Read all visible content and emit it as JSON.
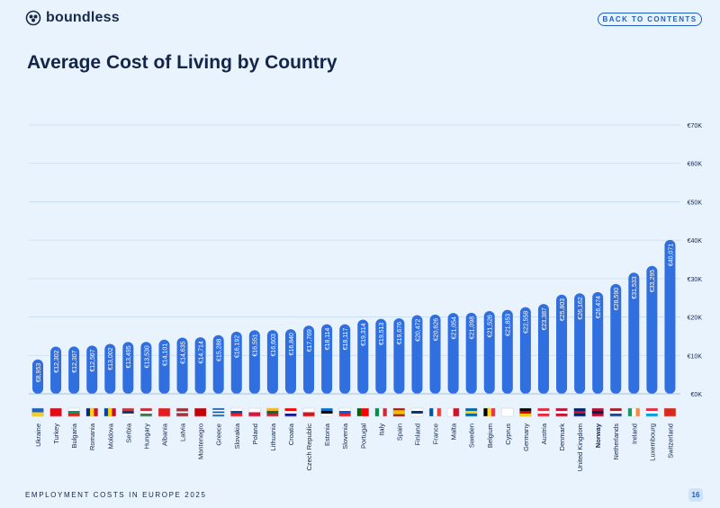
{
  "brand": {
    "name": "boundless",
    "logo_icon": "boundless-logo-icon"
  },
  "nav": {
    "back_label": "BACK TO CONTENTS"
  },
  "page": {
    "title": "Average Cost of Living by Country",
    "footer": "EMPLOYMENT COSTS IN EUROPE 2025",
    "page_number": "16"
  },
  "colors": {
    "bar": "#2f6fe0",
    "text": "#13254a",
    "accent": "#1f5fbf",
    "background": "#e8f3fd"
  },
  "chart_data": {
    "type": "bar",
    "title": "Average Cost of Living by Country",
    "xlabel": "",
    "ylabel": "",
    "ylim": [
      0,
      70000
    ],
    "y_ticks": [
      0,
      10000,
      20000,
      30000,
      40000,
      50000,
      60000,
      70000
    ],
    "y_tick_labels": [
      "€0K",
      "€10K",
      "€20K",
      "€30K",
      "€40K",
      "€50K",
      "€60K",
      "€70K"
    ],
    "grid": true,
    "y_axis_side": "right",
    "categories": [
      "Ukraine",
      "Turkey",
      "Bulgaria",
      "Romania",
      "Moldova",
      "Serbia",
      "Hungary",
      "Albania",
      "Latvia",
      "Montenegro",
      "Greece",
      "Slovakia",
      "Poland",
      "Lithuania",
      "Croatia",
      "Czech Republic",
      "Estonia",
      "Slovenia",
      "Portugal",
      "Italy",
      "Spain",
      "Finland",
      "France",
      "Malta",
      "Sweden",
      "Belgium",
      "Cyprus",
      "Germany",
      "Austria",
      "Denmark",
      "United Kingdom",
      "Norway",
      "Netherlands",
      "Ireland",
      "Luxembourg",
      "Switzerland"
    ],
    "values": [
      8953,
      12302,
      12307,
      12567,
      13002,
      13495,
      13530,
      14101,
      14635,
      14714,
      15288,
      16192,
      16551,
      16603,
      16840,
      17769,
      18114,
      18117,
      19314,
      19513,
      19676,
      20472,
      20626,
      21054,
      21098,
      21526,
      21853,
      22558,
      23387,
      25803,
      26162,
      26474,
      28590,
      31533,
      33295,
      40071
    ],
    "data_labels": [
      "€8,953",
      "€12,302",
      "€12,307",
      "€12,567",
      "€13,002",
      "€13,495",
      "€13,530",
      "€14,101",
      "€14,635",
      "€14,714",
      "€15,288",
      "€16,192",
      "€16,551",
      "€16,603",
      "€16,840",
      "€17,769",
      "€18,114",
      "€18,117",
      "€19,314",
      "€19,513",
      "€19,676",
      "€20,472",
      "€20,626",
      "€21,054",
      "€21,098",
      "€21,526",
      "€21,853",
      "€22,558",
      "€23,387",
      "€25,803",
      "€26,162",
      "€26,474",
      "€28,590",
      "€31,533",
      "€33,295",
      "€40,071"
    ],
    "highlighted_category": "Norway",
    "flags": [
      {
        "name": "ukraine-flag-icon",
        "stripes": "h",
        "colors": [
          "#1f5fc8",
          "#f3cf1f"
        ]
      },
      {
        "name": "turkey-flag-icon",
        "stripes": "h",
        "colors": [
          "#e30a17"
        ]
      },
      {
        "name": "bulgaria-flag-icon",
        "stripes": "h",
        "colors": [
          "#ffffff",
          "#00966e",
          "#d62612"
        ]
      },
      {
        "name": "romania-flag-icon",
        "stripes": "v",
        "colors": [
          "#002b7f",
          "#fcd116",
          "#ce1126"
        ]
      },
      {
        "name": "moldova-flag-icon",
        "stripes": "v",
        "colors": [
          "#0046ae",
          "#ffd200",
          "#cc092f"
        ]
      },
      {
        "name": "serbia-flag-icon",
        "stripes": "h",
        "colors": [
          "#c6363c",
          "#0c4076",
          "#ffffff"
        ]
      },
      {
        "name": "hungary-flag-icon",
        "stripes": "h",
        "colors": [
          "#ce2939",
          "#ffffff",
          "#477050"
        ]
      },
      {
        "name": "albania-flag-icon",
        "stripes": "h",
        "colors": [
          "#e41e20"
        ]
      },
      {
        "name": "latvia-flag-icon",
        "stripes": "h",
        "colors": [
          "#9e3039",
          "#9e3039",
          "#ffffff",
          "#9e3039",
          "#9e3039"
        ]
      },
      {
        "name": "montenegro-flag-icon",
        "stripes": "h",
        "colors": [
          "#c40308"
        ]
      },
      {
        "name": "greece-flag-icon",
        "stripes": "h",
        "colors": [
          "#0d5eaf",
          "#ffffff",
          "#0d5eaf",
          "#ffffff",
          "#0d5eaf"
        ]
      },
      {
        "name": "slovakia-flag-icon",
        "stripes": "h",
        "colors": [
          "#ffffff",
          "#0b4ea2",
          "#ee1c25"
        ]
      },
      {
        "name": "poland-flag-icon",
        "stripes": "h",
        "colors": [
          "#ffffff",
          "#dc143c"
        ]
      },
      {
        "name": "lithuania-flag-icon",
        "stripes": "h",
        "colors": [
          "#fdb913",
          "#006a44",
          "#c1272d"
        ]
      },
      {
        "name": "croatia-flag-icon",
        "stripes": "h",
        "colors": [
          "#ff0000",
          "#ffffff",
          "#171796"
        ]
      },
      {
        "name": "czech-republic-flag-icon",
        "stripes": "h",
        "colors": [
          "#ffffff",
          "#d7141a"
        ]
      },
      {
        "name": "estonia-flag-icon",
        "stripes": "h",
        "colors": [
          "#0072ce",
          "#000000",
          "#ffffff"
        ]
      },
      {
        "name": "slovenia-flag-icon",
        "stripes": "h",
        "colors": [
          "#ffffff",
          "#005ce5",
          "#ed1c24"
        ]
      },
      {
        "name": "portugal-flag-icon",
        "stripes": "v",
        "colors": [
          "#006600",
          "#ff0000",
          "#ff0000"
        ]
      },
      {
        "name": "italy-flag-icon",
        "stripes": "v",
        "colors": [
          "#009246",
          "#ffffff",
          "#ce2b37"
        ]
      },
      {
        "name": "spain-flag-icon",
        "stripes": "h",
        "colors": [
          "#aa151b",
          "#f1bf00",
          "#f1bf00",
          "#aa151b"
        ]
      },
      {
        "name": "finland-flag-icon",
        "stripes": "h",
        "colors": [
          "#ffffff",
          "#003580",
          "#ffffff"
        ]
      },
      {
        "name": "france-flag-icon",
        "stripes": "v",
        "colors": [
          "#0055a4",
          "#ffffff",
          "#ef4135"
        ]
      },
      {
        "name": "malta-flag-icon",
        "stripes": "v",
        "colors": [
          "#ffffff",
          "#cf142b"
        ]
      },
      {
        "name": "sweden-flag-icon",
        "stripes": "h",
        "colors": [
          "#006aa7",
          "#fecc00",
          "#006aa7"
        ]
      },
      {
        "name": "belgium-flag-icon",
        "stripes": "v",
        "colors": [
          "#000000",
          "#fdda24",
          "#ef3340"
        ]
      },
      {
        "name": "cyprus-flag-icon",
        "stripes": "h",
        "colors": [
          "#ffffff"
        ]
      },
      {
        "name": "germany-flag-icon",
        "stripes": "h",
        "colors": [
          "#000000",
          "#dd0000",
          "#ffce00"
        ]
      },
      {
        "name": "austria-flag-icon",
        "stripes": "h",
        "colors": [
          "#ed2939",
          "#ffffff",
          "#ed2939"
        ]
      },
      {
        "name": "denmark-flag-icon",
        "stripes": "h",
        "colors": [
          "#c8102e",
          "#ffffff",
          "#c8102e"
        ]
      },
      {
        "name": "united-kingdom-flag-icon",
        "stripes": "h",
        "colors": [
          "#012169",
          "#c8102e",
          "#012169"
        ]
      },
      {
        "name": "norway-flag-icon",
        "stripes": "h",
        "colors": [
          "#ba0c2f",
          "#00205b",
          "#ba0c2f"
        ]
      },
      {
        "name": "netherlands-flag-icon",
        "stripes": "h",
        "colors": [
          "#ae1c28",
          "#ffffff",
          "#21468b"
        ]
      },
      {
        "name": "ireland-flag-icon",
        "stripes": "v",
        "colors": [
          "#169b62",
          "#ffffff",
          "#ff883e"
        ]
      },
      {
        "name": "luxembourg-flag-icon",
        "stripes": "h",
        "colors": [
          "#ed2939",
          "#ffffff",
          "#00a1de"
        ]
      },
      {
        "name": "switzerland-flag-icon",
        "stripes": "h",
        "colors": [
          "#da291c"
        ]
      }
    ]
  }
}
